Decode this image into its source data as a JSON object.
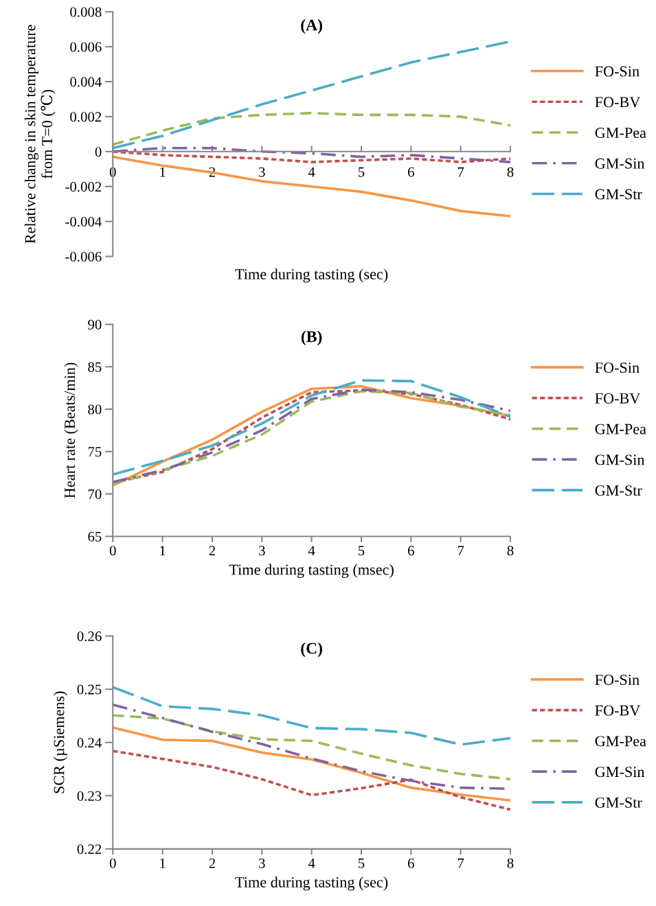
{
  "chart_data": [
    {
      "type": "line",
      "title": "(A)",
      "xlabel": "Time during tasting (sec)",
      "ylabel": "Relative change in skin temperature\nfrom T=0 (℃)",
      "x": [
        0,
        1,
        2,
        3,
        4,
        5,
        6,
        7,
        8
      ],
      "xlim": [
        0,
        8
      ],
      "xticks": [
        0,
        1,
        2,
        3,
        4,
        5,
        6,
        7,
        8
      ],
      "ylim": [
        -0.006,
        0.008
      ],
      "yticks": [
        {
          "value": -0.006,
          "label": "-0.006"
        },
        {
          "value": -0.004,
          "label": "-0.004"
        },
        {
          "value": -0.002,
          "label": "-0.002"
        },
        0,
        {
          "value": 0.002,
          "label": "0.002"
        },
        {
          "value": 0.004,
          "label": "0.004"
        },
        {
          "value": 0.006,
          "label": "0.006"
        },
        {
          "value": 0.008,
          "label": "0.008"
        }
      ],
      "grid": false,
      "legend": "right",
      "marker": "none",
      "series": [
        {
          "name": "FO-Sin",
          "color": "#f79646",
          "line_style": "solid",
          "values": [
            -0.0003,
            -0.0008,
            -0.0012,
            -0.0017,
            -0.002,
            -0.0023,
            -0.0028,
            -0.0034,
            -0.0037
          ]
        },
        {
          "name": "FO-BV",
          "color": "#c0504d",
          "line_style": "dotted",
          "values": [
            0.0,
            -0.0002,
            -0.0003,
            -0.0004,
            -0.0006,
            -0.0005,
            -0.0004,
            -0.0006,
            -0.0004
          ]
        },
        {
          "name": "GM-Pea",
          "color": "#9bbb59",
          "line_style": "dashed",
          "values": [
            0.0004,
            0.0012,
            0.0019,
            0.0021,
            0.0022,
            0.0021,
            0.0021,
            0.002,
            0.0015
          ]
        },
        {
          "name": "GM-Sin",
          "color": "#8064a2",
          "line_style": "dashdot",
          "values": [
            0.0,
            0.0002,
            0.0002,
            0.0,
            -0.0001,
            -0.0003,
            -0.0002,
            -0.0004,
            -0.0006
          ]
        },
        {
          "name": "GM-Str",
          "color": "#4bacc6",
          "line_style": "longdash",
          "values": [
            0.0002,
            0.0009,
            0.0018,
            0.0027,
            0.0035,
            0.0043,
            0.0051,
            0.0057,
            0.0063
          ]
        }
      ]
    },
    {
      "type": "line",
      "title": "(B)",
      "xlabel": "Time during tasting (msec)",
      "ylabel": "Heart rate (Beats/min)",
      "x": [
        0,
        1,
        2,
        3,
        4,
        5,
        6,
        7,
        8
      ],
      "xlim": [
        0,
        8
      ],
      "xticks": [
        0,
        1,
        2,
        3,
        4,
        5,
        6,
        7,
        8
      ],
      "ylim": [
        65,
        90
      ],
      "yticks": [
        65,
        70,
        75,
        80,
        85,
        90
      ],
      "grid": false,
      "legend": "right",
      "marker": "none",
      "series": [
        {
          "name": "FO-Sin",
          "color": "#f79646",
          "line_style": "solid",
          "values": [
            71.0,
            73.8,
            76.4,
            79.7,
            82.4,
            82.7,
            81.3,
            80.4,
            79.2
          ]
        },
        {
          "name": "FO-BV",
          "color": "#c0504d",
          "line_style": "dotted",
          "values": [
            71.3,
            72.6,
            75.3,
            79.0,
            82.0,
            82.2,
            81.8,
            80.5,
            78.8
          ]
        },
        {
          "name": "GM-Pea",
          "color": "#9bbb59",
          "line_style": "dashed",
          "values": [
            71.2,
            72.8,
            74.5,
            77.0,
            80.9,
            82.1,
            81.9,
            80.3,
            79.3
          ]
        },
        {
          "name": "GM-Sin",
          "color": "#8064a2",
          "line_style": "dashdot",
          "values": [
            71.4,
            72.8,
            74.9,
            77.5,
            81.2,
            82.3,
            82.0,
            81.1,
            79.8
          ]
        },
        {
          "name": "GM-Str",
          "color": "#4bacc6",
          "line_style": "longdash",
          "values": [
            72.3,
            73.9,
            75.7,
            78.3,
            81.6,
            83.4,
            83.3,
            81.4,
            79.1
          ]
        }
      ]
    },
    {
      "type": "line",
      "title": "(C)",
      "xlabel": "Time during tasting (sec)",
      "ylabel": "SCR (µSiemens)",
      "x": [
        0,
        1,
        2,
        3,
        4,
        5,
        6,
        7,
        8
      ],
      "xlim": [
        0,
        8
      ],
      "xticks": [
        0,
        1,
        2,
        3,
        4,
        5,
        6,
        7,
        8
      ],
      "ylim": [
        0.22,
        0.26
      ],
      "yticks": [
        0.22,
        0.23,
        0.24,
        0.25,
        0.26
      ],
      "grid": false,
      "legend": "right",
      "marker": "none",
      "series": [
        {
          "name": "FO-Sin",
          "color": "#f79646",
          "line_style": "solid",
          "values": [
            0.2428,
            0.2405,
            0.2403,
            0.2381,
            0.2368,
            0.2343,
            0.2315,
            0.2302,
            0.2291
          ]
        },
        {
          "name": "FO-BV",
          "color": "#c0504d",
          "line_style": "dotted",
          "values": [
            0.2384,
            0.2369,
            0.2354,
            0.2331,
            0.2301,
            0.2314,
            0.233,
            0.2297,
            0.2274
          ]
        },
        {
          "name": "GM-Pea",
          "color": "#9bbb59",
          "line_style": "dashed",
          "values": [
            0.2451,
            0.2445,
            0.2421,
            0.2406,
            0.2403,
            0.2379,
            0.2357,
            0.2341,
            0.2331
          ]
        },
        {
          "name": "GM-Sin",
          "color": "#8064a2",
          "line_style": "dashdot",
          "values": [
            0.2471,
            0.2446,
            0.242,
            0.2397,
            0.237,
            0.2346,
            0.2328,
            0.2315,
            0.2313
          ]
        },
        {
          "name": "GM-Str",
          "color": "#4bacc6",
          "line_style": "longdash",
          "values": [
            0.2504,
            0.2468,
            0.2463,
            0.2451,
            0.2427,
            0.2425,
            0.2418,
            0.2396,
            0.2408
          ]
        }
      ]
    }
  ]
}
